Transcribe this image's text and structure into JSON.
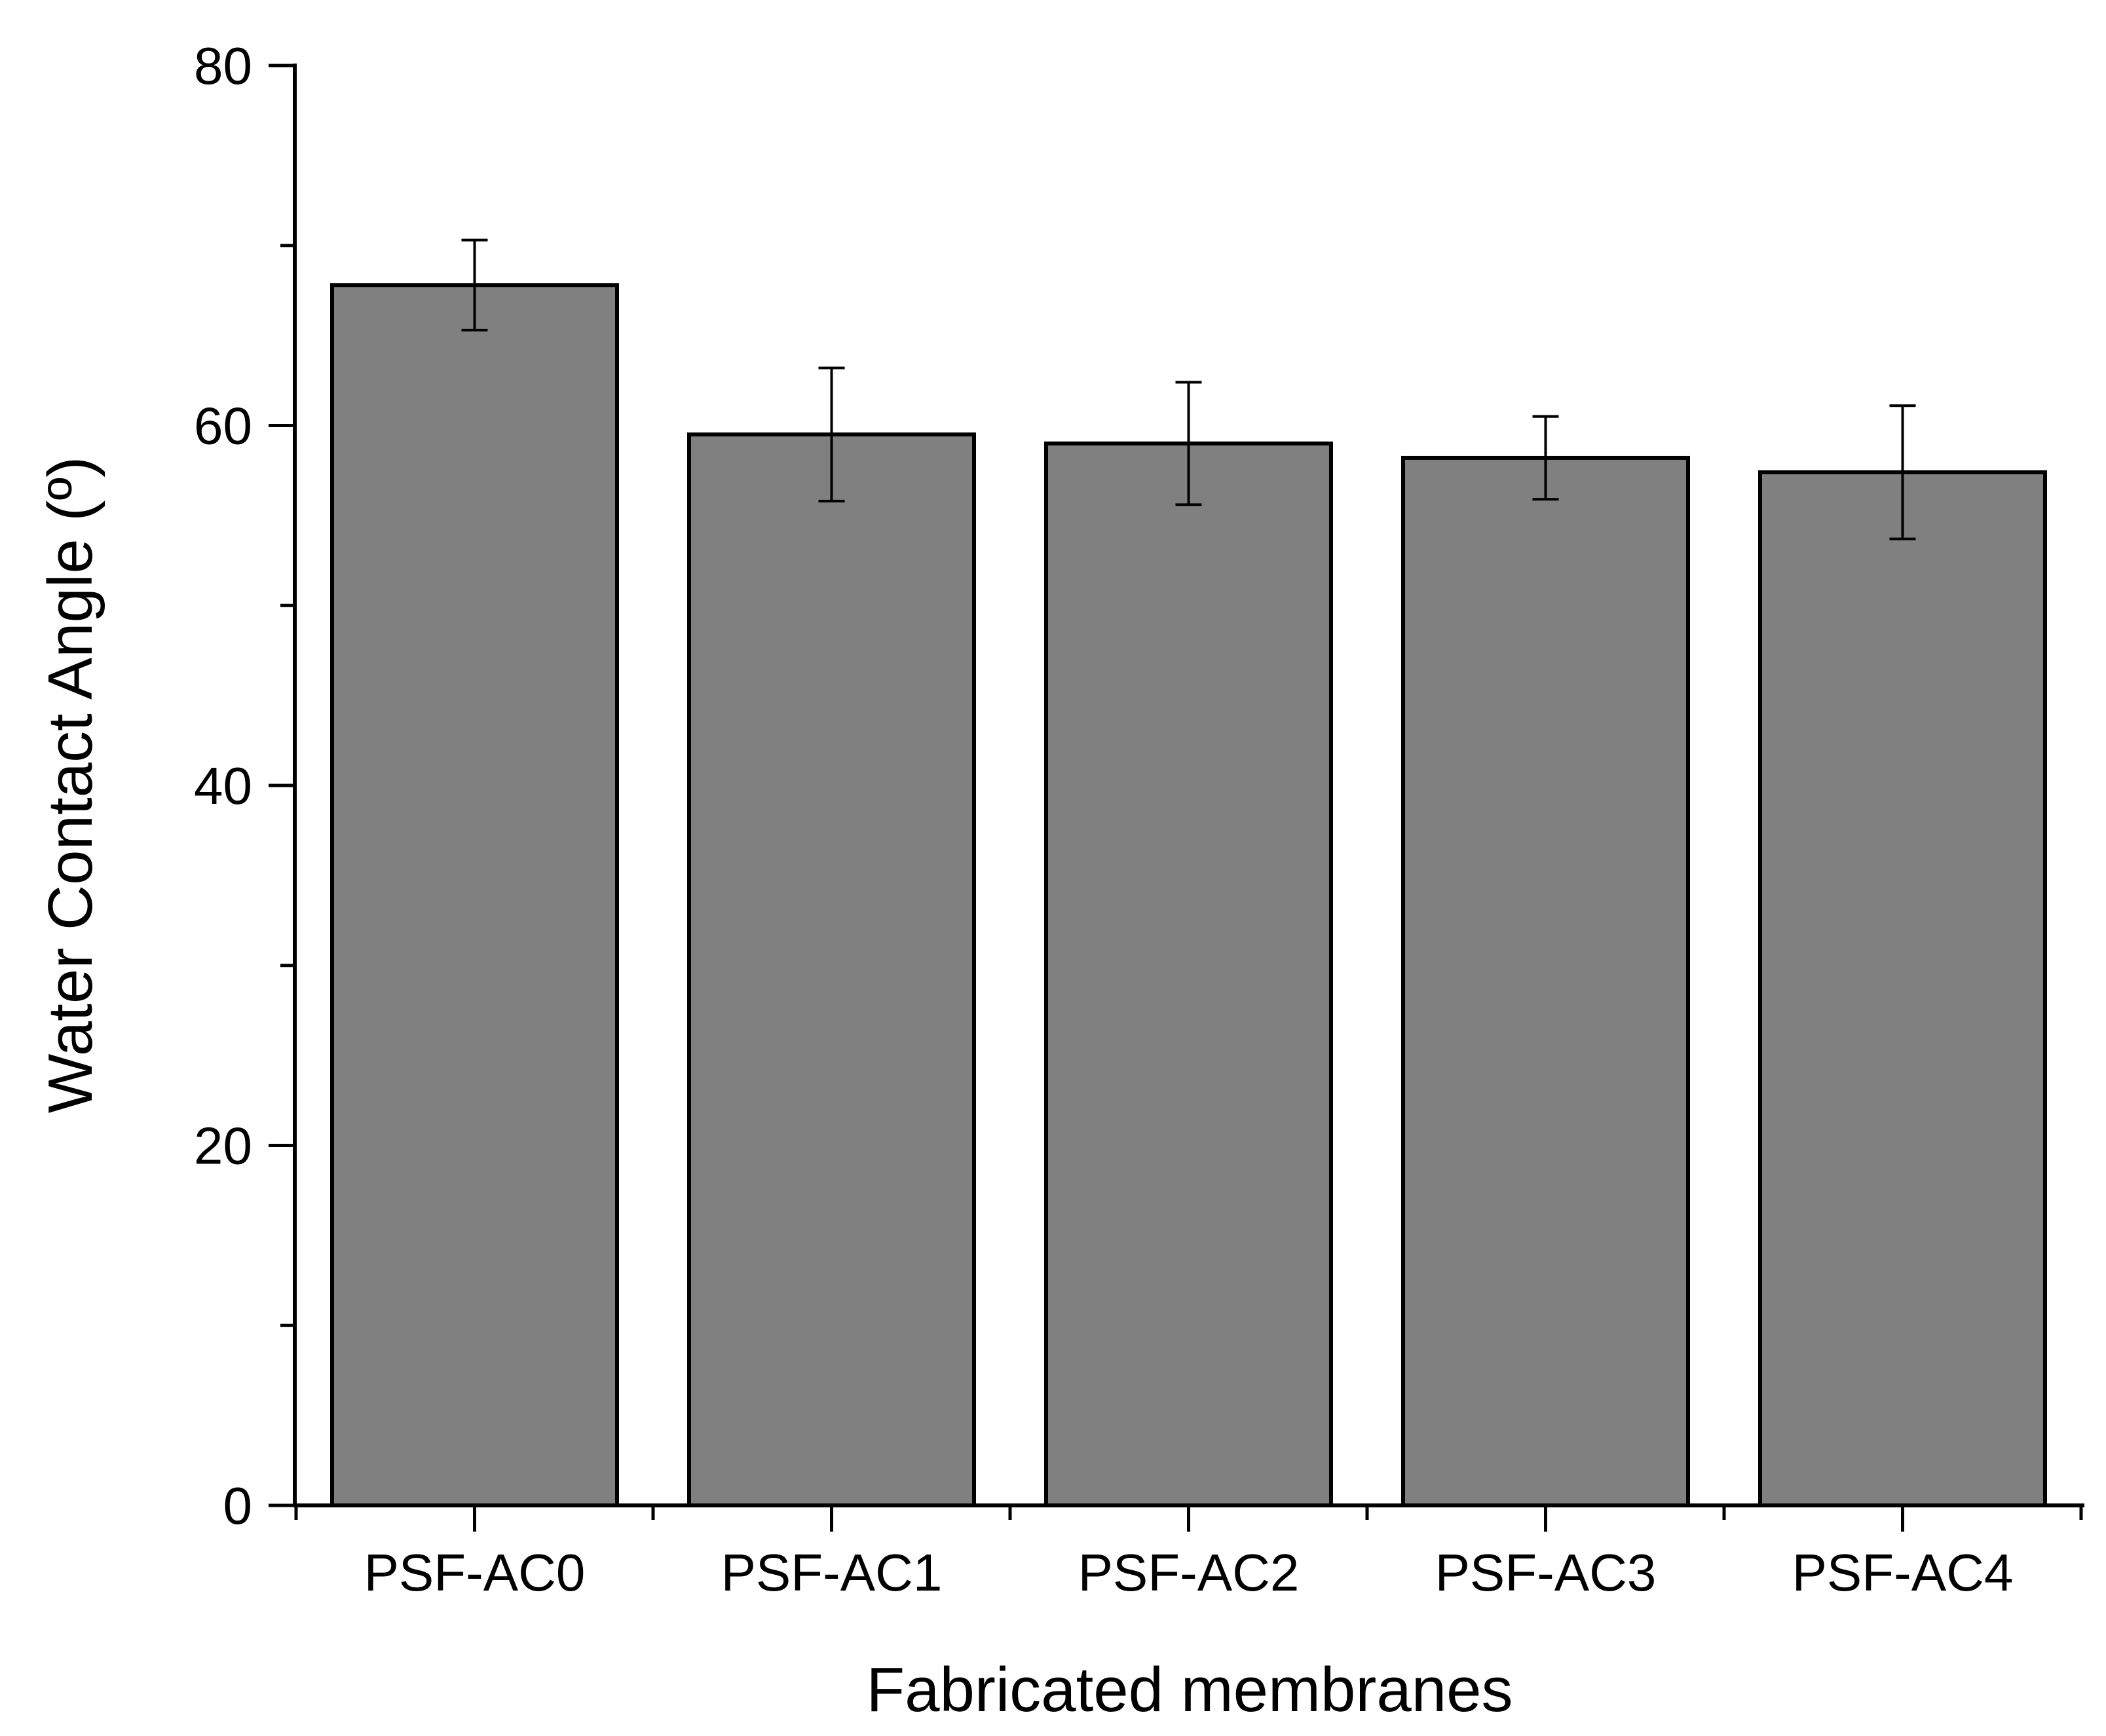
{
  "chart_data": {
    "type": "bar",
    "title": "",
    "xlabel": "Fabricated membranes",
    "ylabel": "Water Contact Angle (º)",
    "categories": [
      "PSF-AC0",
      "PSF-AC1",
      "PSF-AC2",
      "PSF-AC3",
      "PSF-AC4"
    ],
    "values": [
      67.8,
      59.5,
      59.0,
      58.2,
      57.4
    ],
    "errors": [
      2.5,
      3.7,
      3.4,
      2.3,
      3.7
    ],
    "ylim": [
      0,
      80
    ],
    "yticks": [
      0,
      20,
      40,
      60,
      80
    ],
    "yticks_minor": [
      10,
      30,
      50,
      70
    ],
    "grid": false,
    "legend": "none",
    "bar_color": "#808080",
    "edge_color": "#000000"
  }
}
